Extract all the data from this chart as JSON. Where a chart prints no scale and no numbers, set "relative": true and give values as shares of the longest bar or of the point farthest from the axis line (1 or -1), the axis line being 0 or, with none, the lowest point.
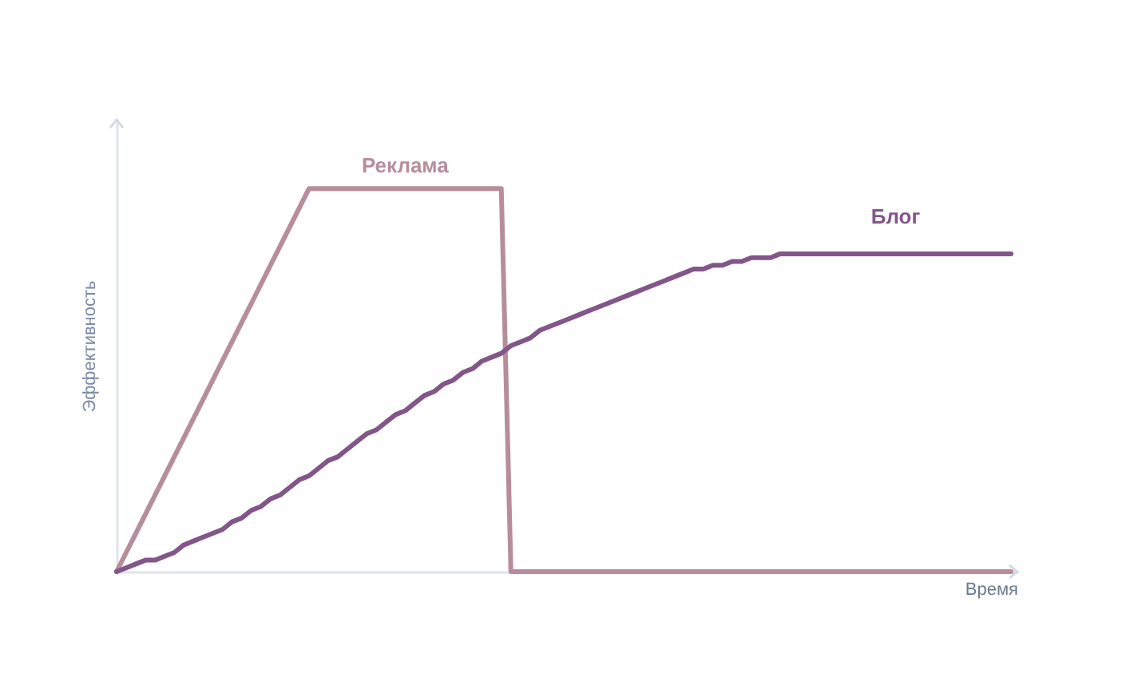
{
  "chart_data": {
    "type": "line",
    "xlabel": "Время",
    "ylabel": "Эффективность",
    "relative": true,
    "tick_labels": false,
    "categories": [
      null,
      null,
      null,
      null,
      null,
      null,
      null,
      null,
      null,
      null,
      null,
      null,
      null,
      null,
      null,
      null,
      null,
      null,
      null,
      null,
      null,
      null,
      null,
      null,
      null,
      null,
      null,
      null,
      null,
      null,
      null,
      null,
      null,
      null,
      null,
      null,
      null,
      null,
      null,
      null,
      null,
      null,
      null,
      null,
      null,
      null,
      null,
      null,
      null,
      null,
      null,
      null,
      null,
      null,
      null,
      null,
      null,
      null,
      null,
      null,
      null,
      null,
      null,
      null,
      null,
      null,
      null,
      null,
      null,
      null,
      null,
      null,
      null,
      null,
      null,
      null,
      null,
      null,
      null,
      null,
      null,
      null,
      null,
      null,
      null,
      null,
      null,
      null,
      null,
      null,
      null,
      null,
      null,
      null
    ],
    "series": [
      {
        "name": "Реклама",
        "color": "#b88d9a",
        "values": [
          0,
          0.05,
          0.1,
          0.15,
          0.2,
          0.25,
          0.3,
          0.35,
          0.4,
          0.45,
          0.5,
          0.55,
          0.6,
          0.65,
          0.7,
          0.75,
          0.8,
          0.85,
          0.9,
          0.95,
          1,
          1,
          1,
          1,
          1,
          1,
          1,
          1,
          1,
          1,
          1,
          1,
          1,
          1,
          1,
          1,
          1,
          1,
          1,
          1,
          1,
          0,
          0,
          0,
          0,
          0,
          0,
          0,
          0,
          0,
          0,
          0,
          0,
          0,
          0,
          0,
          0,
          0,
          0,
          0,
          0,
          0,
          0,
          0,
          0,
          0,
          0,
          0,
          0,
          0,
          0,
          0,
          0,
          0,
          0,
          0,
          0,
          0,
          0,
          0,
          0,
          0,
          0,
          0,
          0,
          0,
          0,
          0,
          0,
          0,
          0,
          0,
          0,
          0
        ]
      },
      {
        "name": "Блог",
        "color": "#83568a",
        "values": [
          0,
          0.01,
          0.02,
          0.03,
          0.03,
          0.04,
          0.05,
          0.07,
          0.08,
          0.09,
          0.1,
          0.11,
          0.13,
          0.14,
          0.16,
          0.17,
          0.19,
          0.2,
          0.22,
          0.24,
          0.25,
          0.27,
          0.29,
          0.3,
          0.32,
          0.34,
          0.36,
          0.37,
          0.39,
          0.41,
          0.42,
          0.44,
          0.46,
          0.47,
          0.49,
          0.5,
          0.52,
          0.53,
          0.55,
          0.56,
          0.57,
          0.59,
          0.6,
          0.61,
          0.63,
          0.64,
          0.65,
          0.66,
          0.67,
          0.68,
          0.69,
          0.7,
          0.71,
          0.72,
          0.73,
          0.74,
          0.75,
          0.76,
          0.77,
          0.78,
          0.79,
          0.79,
          0.8,
          0.8,
          0.81,
          0.81,
          0.82,
          0.82,
          0.82,
          0.83,
          0.83,
          0.83,
          0.83,
          0.83,
          0.83,
          0.83,
          0.83,
          0.83,
          0.83,
          0.83,
          0.83,
          0.83,
          0.83,
          0.83,
          0.83,
          0.83,
          0.83,
          0.83,
          0.83,
          0.83,
          0.83,
          0.83,
          0.83,
          0.83
        ]
      }
    ]
  }
}
